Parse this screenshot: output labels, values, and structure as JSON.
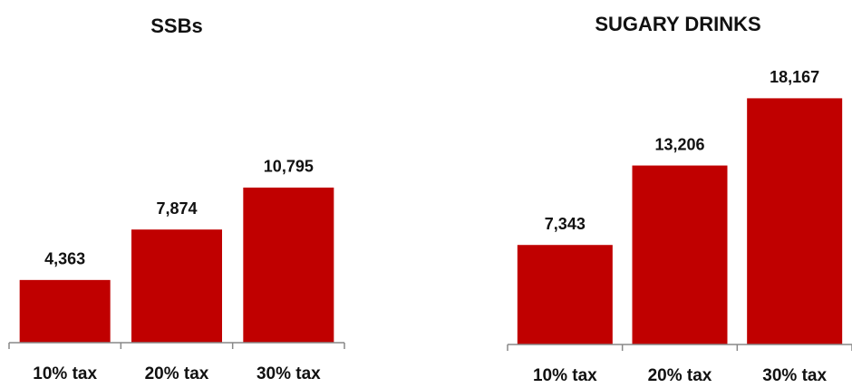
{
  "chart_data": [
    {
      "type": "bar",
      "title": "SSBs",
      "categories": [
        "10% tax",
        "20% tax",
        "30% tax"
      ],
      "values": [
        4363,
        7874,
        10795
      ],
      "value_labels": [
        "4,363",
        "7,874",
        "10,795"
      ],
      "color": "#c00000",
      "ylim": [
        0,
        20000
      ]
    },
    {
      "type": "bar",
      "title": "SUGARY DRINKS",
      "categories": [
        "10% tax",
        "20% tax",
        "30% tax"
      ],
      "values": [
        7343,
        13206,
        18167
      ],
      "value_labels": [
        "7,343",
        "13,206",
        "18,167"
      ],
      "color": "#c00000",
      "ylim": [
        0,
        20000
      ]
    }
  ]
}
